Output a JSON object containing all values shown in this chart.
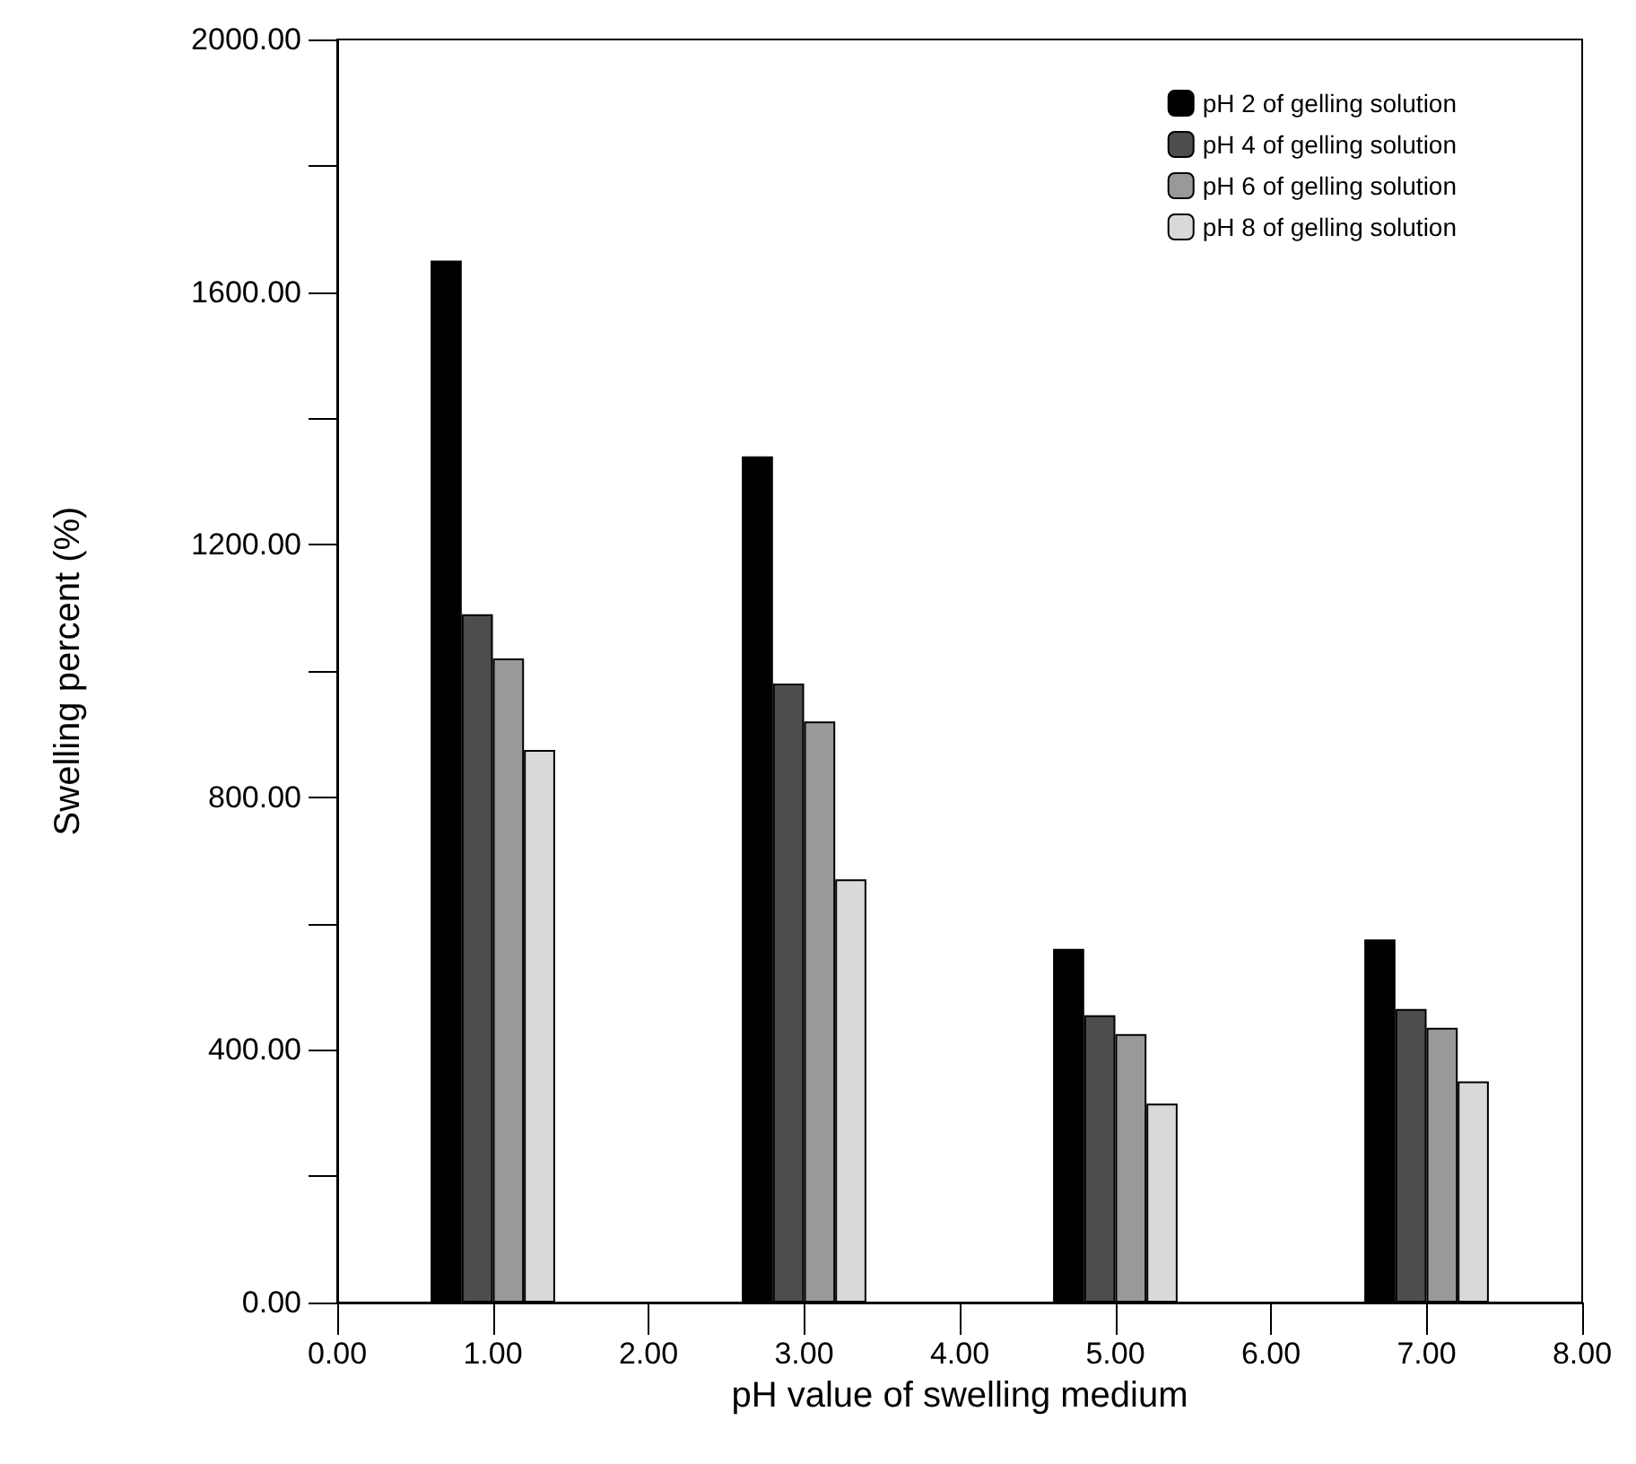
{
  "chart_data": {
    "type": "bar",
    "xlabel": "pH value of swelling medium",
    "ylabel": "Swelling percent (%)",
    "x": [
      1,
      3,
      5,
      7
    ],
    "series": [
      {
        "name": "pH 2 of gelling solution",
        "color": "#000000",
        "values": [
          1650,
          1340,
          560,
          575
        ]
      },
      {
        "name": "pH 4 of gelling solution",
        "color": "#4d4d4d",
        "values": [
          1090,
          980,
          455,
          465
        ]
      },
      {
        "name": "pH 6 of gelling solution",
        "color": "#999999",
        "values": [
          1020,
          920,
          425,
          435
        ]
      },
      {
        "name": "pH 8 of gelling solution",
        "color": "#d9d9d9",
        "values": [
          875,
          670,
          315,
          350
        ]
      }
    ],
    "xlim": [
      0,
      8
    ],
    "xticks": [
      {
        "value": 0,
        "label": "0.00"
      },
      {
        "value": 1,
        "label": "1.00"
      },
      {
        "value": 2,
        "label": "2.00"
      },
      {
        "value": 3,
        "label": "3.00"
      },
      {
        "value": 4,
        "label": "4.00"
      },
      {
        "value": 5,
        "label": "5.00"
      },
      {
        "value": 6,
        "label": "6.00"
      },
      {
        "value": 7,
        "label": "7.00"
      },
      {
        "value": 8,
        "label": "8.00"
      }
    ],
    "ylim": [
      0,
      2000
    ],
    "yticks": [
      {
        "value": 0,
        "label": "0.00"
      },
      {
        "value": 200,
        "label": null
      },
      {
        "value": 400,
        "label": "400.00"
      },
      {
        "value": 600,
        "label": null
      },
      {
        "value": 800,
        "label": "800.00"
      },
      {
        "value": 1000,
        "label": null
      },
      {
        "value": 1200,
        "label": "1200.00"
      },
      {
        "value": 1400,
        "label": null
      },
      {
        "value": 1600,
        "label": "1600.00"
      },
      {
        "value": 1800,
        "label": null
      },
      {
        "value": 2000,
        "label": "2000.00"
      }
    ],
    "grid": false,
    "legend": "top right"
  }
}
